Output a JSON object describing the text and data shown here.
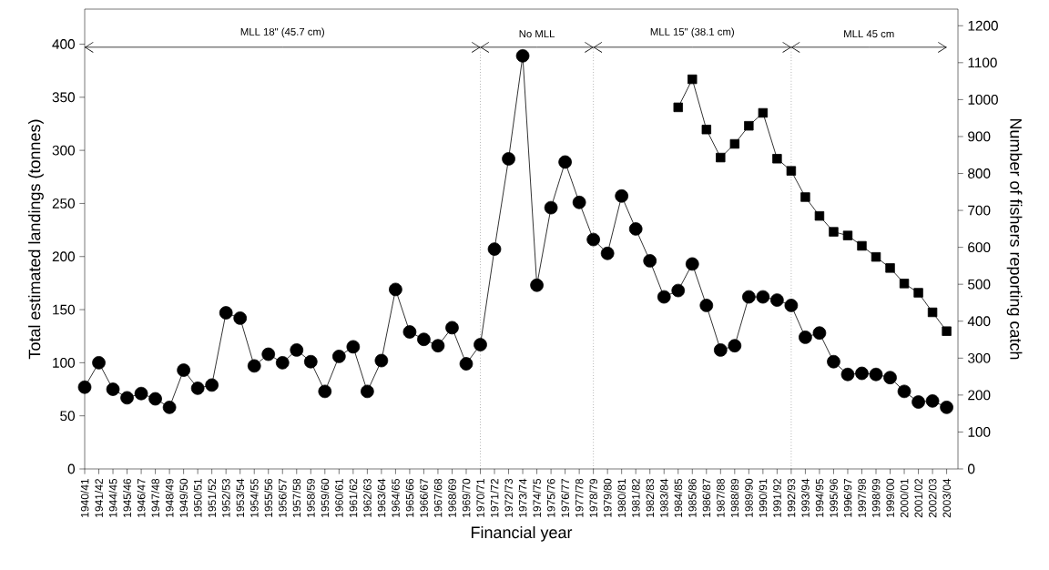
{
  "chart_data": {
    "type": "line",
    "xlabel": "Financial year",
    "ylabel": "Total estimated landings (tonnes)",
    "y2label": "Number of fishers reporting catch",
    "categories": [
      "1940/41",
      "1941/42",
      "1944/45",
      "1945/46",
      "1946/47",
      "1947/48",
      "1948/49",
      "1949/50",
      "1950/51",
      "1951/52",
      "1952/53",
      "1953/54",
      "1954/55",
      "1955/56",
      "1956/57",
      "1957/58",
      "1958/59",
      "1959/60",
      "1960/61",
      "1961/62",
      "1962/63",
      "1963/64",
      "1964/65",
      "1965/66",
      "1966/67",
      "1967/68",
      "1968/69",
      "1969/70",
      "1970/71",
      "1971/72",
      "1972/73",
      "1973/74",
      "1974/75",
      "1975/76",
      "1976/77",
      "1977/78",
      "1978/79",
      "1979/80",
      "1980/81",
      "1981/82",
      "1982/83",
      "1983/84",
      "1984/85",
      "1985/86",
      "1986/87",
      "1987/88",
      "1988/89",
      "1989/90",
      "1990/91",
      "1991/92",
      "1992/93",
      "1993/94",
      "1994/95",
      "1995/96",
      "1996/97",
      "1997/98",
      "1998/99",
      "1999/00",
      "2000/01",
      "2001/02",
      "2002/03",
      "2003/04"
    ],
    "series": [
      {
        "color": "#000000",
        "marker": "circle",
        "values": [
          77,
          100,
          75,
          67,
          71,
          66,
          58,
          93,
          76,
          79,
          147,
          142,
          97,
          108,
          100,
          112,
          101,
          73,
          106,
          115,
          73,
          102,
          169,
          129,
          122,
          116,
          133,
          99,
          117,
          207,
          292,
          389,
          173,
          246,
          289,
          251,
          216,
          203,
          257,
          226,
          196,
          162,
          168,
          193,
          154,
          112,
          116,
          162,
          162,
          159,
          154,
          124,
          128,
          101,
          89,
          90,
          89,
          86,
          73,
          63,
          64,
          58
        ]
      },
      {
        "color": "#000000",
        "marker": "square",
        "axis": "y2",
        "values": [
          null,
          null,
          null,
          null,
          null,
          null,
          null,
          null,
          null,
          null,
          null,
          null,
          null,
          null,
          null,
          null,
          null,
          null,
          null,
          null,
          null,
          null,
          null,
          null,
          null,
          null,
          null,
          null,
          null,
          null,
          null,
          null,
          null,
          null,
          null,
          null,
          null,
          null,
          null,
          null,
          null,
          null,
          979,
          1055,
          919,
          843,
          880,
          929,
          964,
          840,
          807,
          736,
          685,
          642,
          632,
          604,
          574,
          544,
          502,
          477,
          424,
          373
        ]
      }
    ],
    "line_style": "solid",
    "ylim": [
      0,
      433
    ],
    "yticks": [
      0,
      50,
      100,
      150,
      200,
      250,
      300,
      350,
      400
    ],
    "y2lim": [
      0,
      1245
    ],
    "y2ticks": [
      0,
      100,
      200,
      300,
      400,
      500,
      600,
      700,
      800,
      900,
      1000,
      1100,
      1200
    ],
    "ref_lines": [
      {
        "axis": "x",
        "value": "1970/71",
        "line_style": "dotted"
      },
      {
        "axis": "x",
        "value": "1978/79",
        "line_style": "dotted"
      },
      {
        "axis": "x",
        "value": "1992/93",
        "line_style": "dotted"
      }
    ],
    "annotations": [
      "MLL 18\" (45.7 cm)",
      "No MLL",
      "MLL 15\" (38.1 cm)",
      "MLL 45 cm"
    ]
  }
}
